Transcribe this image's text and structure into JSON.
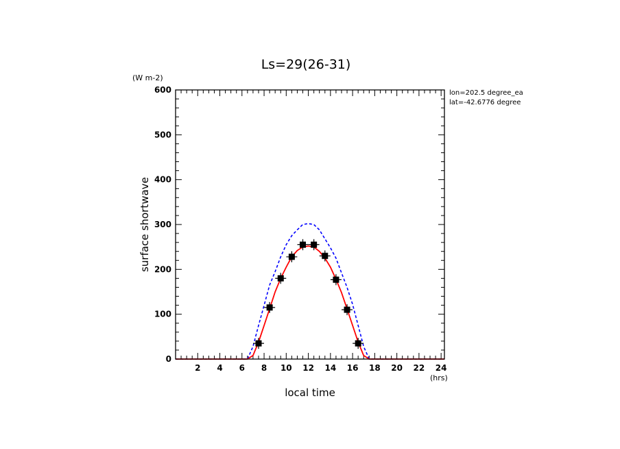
{
  "chart_data": {
    "type": "line",
    "title": "Ls=29(26-31)",
    "xlabel": "local time",
    "ylabel": "surface shortwave",
    "x_unit": "(hrs)",
    "y_unit": "(W m-2)",
    "annotation": [
      "lon=202.5 degree_ea",
      "lat=-42.6776 degree"
    ],
    "xlim": [
      0,
      24.3
    ],
    "ylim": [
      0,
      600
    ],
    "x_ticks": [
      2,
      4,
      6,
      8,
      10,
      12,
      14,
      16,
      18,
      20,
      22,
      24
    ],
    "y_ticks": [
      0,
      100,
      200,
      300,
      400,
      500,
      600
    ],
    "grid": false,
    "series": [
      {
        "style": "dashed",
        "color": "#0000ff",
        "x": [
          0,
          1,
          2,
          3,
          4,
          5,
          6,
          6.5,
          7,
          7.5,
          8,
          8.5,
          9,
          9.5,
          10,
          10.5,
          11,
          11.5,
          12,
          12.5,
          13,
          13.5,
          14,
          14.5,
          15,
          15.5,
          16,
          16.5,
          17,
          17.5,
          18,
          19,
          20,
          21,
          22,
          23,
          24,
          24.3
        ],
        "y": [
          0,
          0,
          0,
          0,
          0,
          0,
          0,
          0,
          28,
          75,
          120,
          165,
          195,
          228,
          255,
          275,
          288,
          300,
          302,
          300,
          288,
          268,
          248,
          225,
          192,
          160,
          122,
          75,
          28,
          0,
          0,
          0,
          0,
          0,
          0,
          0,
          0,
          0
        ]
      },
      {
        "style": "solid",
        "color": "#ff0000",
        "x": [
          0,
          1,
          2,
          3,
          4,
          5,
          6,
          6.5,
          7,
          7.5,
          8,
          8.5,
          9,
          9.5,
          10,
          10.5,
          11,
          11.5,
          12,
          12.5,
          13,
          13.5,
          14,
          14.5,
          15,
          15.5,
          16,
          16.5,
          17,
          17.5,
          18,
          19,
          20,
          21,
          22,
          23,
          24,
          24.3
        ],
        "y": [
          0,
          0,
          0,
          0,
          0,
          0,
          0,
          0,
          8,
          38,
          75,
          112,
          150,
          180,
          205,
          228,
          242,
          250,
          252,
          250,
          240,
          225,
          205,
          178,
          148,
          112,
          75,
          38,
          8,
          0,
          0,
          0,
          0,
          0,
          0,
          0,
          0,
          0
        ]
      },
      {
        "style": "markers",
        "color": "#000000",
        "x": [
          7.5,
          8.5,
          9.5,
          10.5,
          11.5,
          12.5,
          13.5,
          14.5,
          15.5,
          16.5
        ],
        "y": [
          35,
          115,
          180,
          228,
          255,
          255,
          230,
          177,
          110,
          35
        ]
      }
    ]
  }
}
